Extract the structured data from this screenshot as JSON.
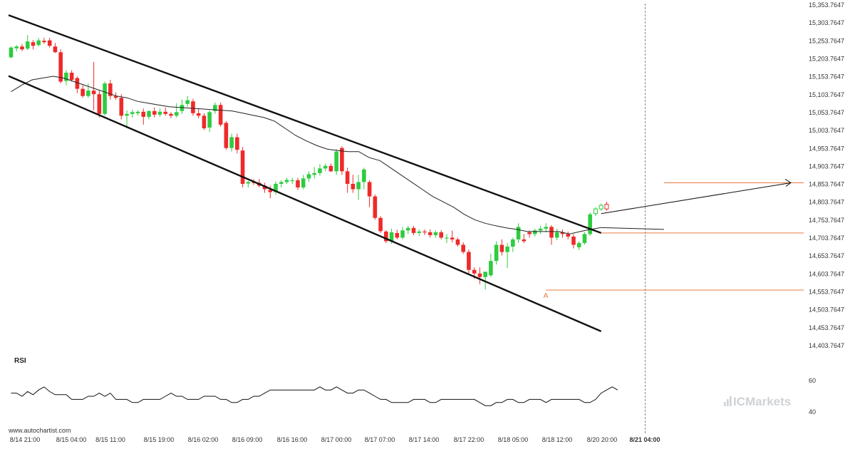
{
  "chart_data": {
    "type": "candlestick",
    "title": "",
    "y_ticks": [
      "15,353.7647",
      "15,303.7647",
      "15,253.7647",
      "15,203.7647",
      "15,153.7647",
      "15,103.7647",
      "15,053.7647",
      "15,003.7647",
      "14,953.7647",
      "14,903.7647",
      "14,853.7647",
      "14,803.7647",
      "14,753.7647",
      "14,703.7647",
      "14,653.7647",
      "14,603.7647",
      "14,553.7647",
      "14,503.7647",
      "14,453.7647",
      "14,403.7647"
    ],
    "ylim": [
      14403.7647,
      15353.7647
    ],
    "x_ticks": [
      "8/14 21:00",
      "8/15 04:00",
      "8/15 11:00",
      "8/15 19:00",
      "8/16 02:00",
      "8/16 09:00",
      "8/16 16:00",
      "8/17 00:00",
      "8/17 07:00",
      "8/17 14:00",
      "8/17 22:00",
      "8/18 05:00",
      "8/18 12:00",
      "8/20 20:00",
      "8/21 04:00"
    ],
    "x_tick_bold": "8/21 04:00",
    "colors": {
      "up": "#2ecc40",
      "down": "#ee2a2a",
      "line": "#111111",
      "ma": "#222222",
      "level": "#e87a3c",
      "vline": "#888888"
    },
    "candles": [
      {
        "o": 15208,
        "h": 15238,
        "l": 15205,
        "c": 15235
      },
      {
        "o": 15233,
        "h": 15242,
        "l": 15224,
        "c": 15238
      },
      {
        "o": 15238,
        "h": 15245,
        "l": 15225,
        "c": 15230
      },
      {
        "o": 15232,
        "h": 15270,
        "l": 15228,
        "c": 15252
      },
      {
        "o": 15250,
        "h": 15256,
        "l": 15230,
        "c": 15240
      },
      {
        "o": 15242,
        "h": 15262,
        "l": 15238,
        "c": 15255
      },
      {
        "o": 15254,
        "h": 15262,
        "l": 15246,
        "c": 15250
      },
      {
        "o": 15255,
        "h": 15262,
        "l": 15235,
        "c": 15240
      },
      {
        "o": 15238,
        "h": 15248,
        "l": 15220,
        "c": 15222
      },
      {
        "o": 15222,
        "h": 15230,
        "l": 15135,
        "c": 15140
      },
      {
        "o": 15142,
        "h": 15172,
        "l": 15130,
        "c": 15165
      },
      {
        "o": 15165,
        "h": 15172,
        "l": 15140,
        "c": 15145
      },
      {
        "o": 15150,
        "h": 15155,
        "l": 15108,
        "c": 15120
      },
      {
        "o": 15120,
        "h": 15130,
        "l": 15095,
        "c": 15100
      },
      {
        "o": 15100,
        "h": 15135,
        "l": 15095,
        "c": 15115
      },
      {
        "o": 15115,
        "h": 15195,
        "l": 15060,
        "c": 15105
      },
      {
        "o": 15105,
        "h": 15115,
        "l": 15040,
        "c": 15050
      },
      {
        "o": 15050,
        "h": 15140,
        "l": 15045,
        "c": 15135
      },
      {
        "o": 15135,
        "h": 15145,
        "l": 15090,
        "c": 15100
      },
      {
        "o": 15100,
        "h": 15110,
        "l": 15090,
        "c": 15095
      },
      {
        "o": 15095,
        "h": 15105,
        "l": 15035,
        "c": 15045
      },
      {
        "o": 15045,
        "h": 15060,
        "l": 15010,
        "c": 15050
      },
      {
        "o": 15050,
        "h": 15062,
        "l": 15040,
        "c": 15055
      },
      {
        "o": 15052,
        "h": 15060,
        "l": 15045,
        "c": 15056
      },
      {
        "o": 15056,
        "h": 15065,
        "l": 15020,
        "c": 15042
      },
      {
        "o": 15042,
        "h": 15060,
        "l": 15035,
        "c": 15058
      },
      {
        "o": 15058,
        "h": 15068,
        "l": 15040,
        "c": 15048
      },
      {
        "o": 15048,
        "h": 15065,
        "l": 15042,
        "c": 15056
      },
      {
        "o": 15056,
        "h": 15068,
        "l": 15045,
        "c": 15050
      },
      {
        "o": 15050,
        "h": 15055,
        "l": 15038,
        "c": 15045
      },
      {
        "o": 15045,
        "h": 15080,
        "l": 15040,
        "c": 15055
      },
      {
        "o": 15058,
        "h": 15090,
        "l": 15050,
        "c": 15075
      },
      {
        "o": 15078,
        "h": 15100,
        "l": 15070,
        "c": 15088
      },
      {
        "o": 15085,
        "h": 15092,
        "l": 15045,
        "c": 15052
      },
      {
        "o": 15052,
        "h": 15065,
        "l": 15038,
        "c": 15045
      },
      {
        "o": 15045,
        "h": 15052,
        "l": 15005,
        "c": 15010
      },
      {
        "o": 15012,
        "h": 15060,
        "l": 15000,
        "c": 15055
      },
      {
        "o": 15058,
        "h": 15082,
        "l": 15050,
        "c": 15075
      },
      {
        "o": 15075,
        "h": 15082,
        "l": 15015,
        "c": 15020
      },
      {
        "o": 15025,
        "h": 15030,
        "l": 14950,
        "c": 14955
      },
      {
        "o": 14955,
        "h": 14995,
        "l": 14945,
        "c": 14985
      },
      {
        "o": 14985,
        "h": 14995,
        "l": 14940,
        "c": 14950
      },
      {
        "o": 14948,
        "h": 14958,
        "l": 14845,
        "c": 14855
      },
      {
        "o": 14856,
        "h": 14863,
        "l": 14845,
        "c": 14860
      },
      {
        "o": 14860,
        "h": 14868,
        "l": 14852,
        "c": 14858
      },
      {
        "o": 14858,
        "h": 14868,
        "l": 14845,
        "c": 14850
      },
      {
        "o": 14850,
        "h": 14858,
        "l": 14830,
        "c": 14840
      },
      {
        "o": 14838,
        "h": 14850,
        "l": 14815,
        "c": 14832
      },
      {
        "o": 14832,
        "h": 14862,
        "l": 14825,
        "c": 14855
      },
      {
        "o": 14855,
        "h": 14865,
        "l": 14845,
        "c": 14860
      },
      {
        "o": 14860,
        "h": 14872,
        "l": 14855,
        "c": 14866
      },
      {
        "o": 14865,
        "h": 14872,
        "l": 14855,
        "c": 14865
      },
      {
        "o": 14865,
        "h": 14872,
        "l": 14838,
        "c": 14845
      },
      {
        "o": 14845,
        "h": 14880,
        "l": 14840,
        "c": 14870
      },
      {
        "o": 14870,
        "h": 14890,
        "l": 14860,
        "c": 14882
      },
      {
        "o": 14880,
        "h": 14902,
        "l": 14870,
        "c": 14885
      },
      {
        "o": 14885,
        "h": 14910,
        "l": 14878,
        "c": 14898
      },
      {
        "o": 14898,
        "h": 14912,
        "l": 14890,
        "c": 14905
      },
      {
        "o": 14905,
        "h": 14912,
        "l": 14888,
        "c": 14890
      },
      {
        "o": 14890,
        "h": 14952,
        "l": 14880,
        "c": 14945
      },
      {
        "o": 14955,
        "h": 14960,
        "l": 14880,
        "c": 14890
      },
      {
        "o": 14890,
        "h": 14900,
        "l": 14830,
        "c": 14855
      },
      {
        "o": 14855,
        "h": 14880,
        "l": 14830,
        "c": 14840
      },
      {
        "o": 14840,
        "h": 14880,
        "l": 14810,
        "c": 14860
      },
      {
        "o": 14860,
        "h": 14900,
        "l": 14840,
        "c": 14895
      },
      {
        "o": 14860,
        "h": 14865,
        "l": 14790,
        "c": 14820
      },
      {
        "o": 14820,
        "h": 14825,
        "l": 14755,
        "c": 14760
      },
      {
        "o": 14760,
        "h": 14765,
        "l": 14718,
        "c": 14723
      },
      {
        "o": 14722,
        "h": 14726,
        "l": 14690,
        "c": 14695
      },
      {
        "o": 14695,
        "h": 14730,
        "l": 14688,
        "c": 14720
      },
      {
        "o": 14718,
        "h": 14727,
        "l": 14700,
        "c": 14705
      },
      {
        "o": 14705,
        "h": 14735,
        "l": 14700,
        "c": 14725
      },
      {
        "o": 14725,
        "h": 14738,
        "l": 14715,
        "c": 14732
      },
      {
        "o": 14732,
        "h": 14738,
        "l": 14712,
        "c": 14718
      },
      {
        "o": 14718,
        "h": 14728,
        "l": 14710,
        "c": 14722
      },
      {
        "o": 14722,
        "h": 14728,
        "l": 14712,
        "c": 14720
      },
      {
        "o": 14720,
        "h": 14728,
        "l": 14705,
        "c": 14712
      },
      {
        "o": 14712,
        "h": 14725,
        "l": 14705,
        "c": 14720
      },
      {
        "o": 14720,
        "h": 14726,
        "l": 14700,
        "c": 14705
      },
      {
        "o": 14705,
        "h": 14715,
        "l": 14690,
        "c": 14705
      },
      {
        "o": 14705,
        "h": 14725,
        "l": 14692,
        "c": 14700
      },
      {
        "o": 14700,
        "h": 14705,
        "l": 14680,
        "c": 14685
      },
      {
        "o": 14685,
        "h": 14692,
        "l": 14660,
        "c": 14665
      },
      {
        "o": 14665,
        "h": 14672,
        "l": 14605,
        "c": 14615
      },
      {
        "o": 14615,
        "h": 14622,
        "l": 14590,
        "c": 14605
      },
      {
        "o": 14605,
        "h": 14622,
        "l": 14575,
        "c": 14595
      },
      {
        "o": 14595,
        "h": 14605,
        "l": 14560,
        "c": 14610
      },
      {
        "o": 14600,
        "h": 14660,
        "l": 14595,
        "c": 14640
      },
      {
        "o": 14640,
        "h": 14695,
        "l": 14630,
        "c": 14685
      },
      {
        "o": 14685,
        "h": 14700,
        "l": 14655,
        "c": 14665
      },
      {
        "o": 14665,
        "h": 14690,
        "l": 14620,
        "c": 14680
      },
      {
        "o": 14680,
        "h": 14705,
        "l": 14665,
        "c": 14700
      },
      {
        "o": 14700,
        "h": 14745,
        "l": 14690,
        "c": 14735
      },
      {
        "o": 14700,
        "h": 14715,
        "l": 14690,
        "c": 14695
      },
      {
        "o": 14720,
        "h": 14725,
        "l": 14705,
        "c": 14715
      },
      {
        "o": 14715,
        "h": 14730,
        "l": 14708,
        "c": 14725
      },
      {
        "o": 14725,
        "h": 14738,
        "l": 14715,
        "c": 14730
      },
      {
        "o": 14730,
        "h": 14745,
        "l": 14720,
        "c": 14735
      },
      {
        "o": 14735,
        "h": 14740,
        "l": 14685,
        "c": 14705
      },
      {
        "o": 14705,
        "h": 14730,
        "l": 14698,
        "c": 14720
      },
      {
        "o": 14720,
        "h": 14728,
        "l": 14705,
        "c": 14715
      },
      {
        "o": 14715,
        "h": 14722,
        "l": 14700,
        "c": 14708
      },
      {
        "o": 14708,
        "h": 14715,
        "l": 14675,
        "c": 14685
      },
      {
        "o": 14678,
        "h": 14695,
        "l": 14670,
        "c": 14690
      },
      {
        "o": 14690,
        "h": 14720,
        "l": 14685,
        "c": 14715
      },
      {
        "o": 14715,
        "h": 14775,
        "l": 14710,
        "c": 14770
      },
      {
        "o": 14772,
        "h": 14790,
        "l": 14765,
        "c": 14785
      },
      {
        "o": 14785,
        "h": 14800,
        "l": 14780,
        "c": 14795
      },
      {
        "o": 14798,
        "h": 14805,
        "l": 14780,
        "c": 14785
      }
    ],
    "ma": [
      15112,
      15130,
      15145,
      15150,
      15155,
      15150,
      15140,
      15130,
      15120,
      15110,
      15100,
      15095,
      15085,
      15080,
      15075,
      15070,
      15068,
      15066,
      15064,
      15062,
      15060,
      15058,
      15052,
      15046,
      15040,
      15030,
      15010,
      14990,
      14975,
      14962,
      14952,
      14948,
      14945,
      14945,
      14928,
      14920,
      14900,
      14880,
      14860,
      14840,
      14820,
      14805,
      14790,
      14770,
      14755,
      14745,
      14738,
      14732,
      14728,
      14722,
      14722,
      14722,
      14722,
      14715,
      14722,
      14728,
      14733
    ],
    "channel": {
      "upper": [
        [
          0,
          15325.5
        ],
        [
          107,
          14718
        ]
      ],
      "lower": [
        [
          0,
          15155.7
        ],
        [
          107,
          14443.7
        ]
      ]
    },
    "pattern_label": "A",
    "support_level": 14558.7647,
    "breakout_level": 14718,
    "target_level": 14858,
    "projection": [
      [
        107,
        14772
      ],
      [
        132,
        14858
      ]
    ],
    "rsi": {
      "title": "RSI",
      "ticks": [
        "60",
        "40"
      ],
      "ylim": [
        40,
        60
      ],
      "values": [
        52,
        52,
        50,
        53,
        51,
        54,
        56,
        53,
        51,
        51,
        51,
        48,
        48,
        48,
        50,
        50,
        52,
        50,
        52,
        48,
        48,
        48,
        46,
        46,
        48,
        48,
        48,
        48,
        50,
        52,
        50,
        50,
        48,
        48,
        48,
        50,
        50,
        50,
        48,
        48,
        46,
        46,
        48,
        48,
        50,
        50,
        52,
        54,
        54,
        54,
        54,
        54,
        54,
        54,
        54,
        54,
        56,
        54,
        54,
        56,
        54,
        52,
        52,
        54,
        54,
        52,
        50,
        48,
        48,
        46,
        46,
        46,
        46,
        48,
        48,
        48,
        46,
        46,
        48,
        48,
        48,
        48,
        48,
        48,
        48,
        46,
        44,
        44,
        46,
        46,
        48,
        48,
        46,
        46,
        48,
        48,
        48,
        46,
        48,
        48,
        48,
        48,
        48,
        48,
        46,
        46,
        48,
        52,
        54,
        56,
        54
      ]
    },
    "source": "www.autochartist.com",
    "watermark": "ICMarkets"
  }
}
